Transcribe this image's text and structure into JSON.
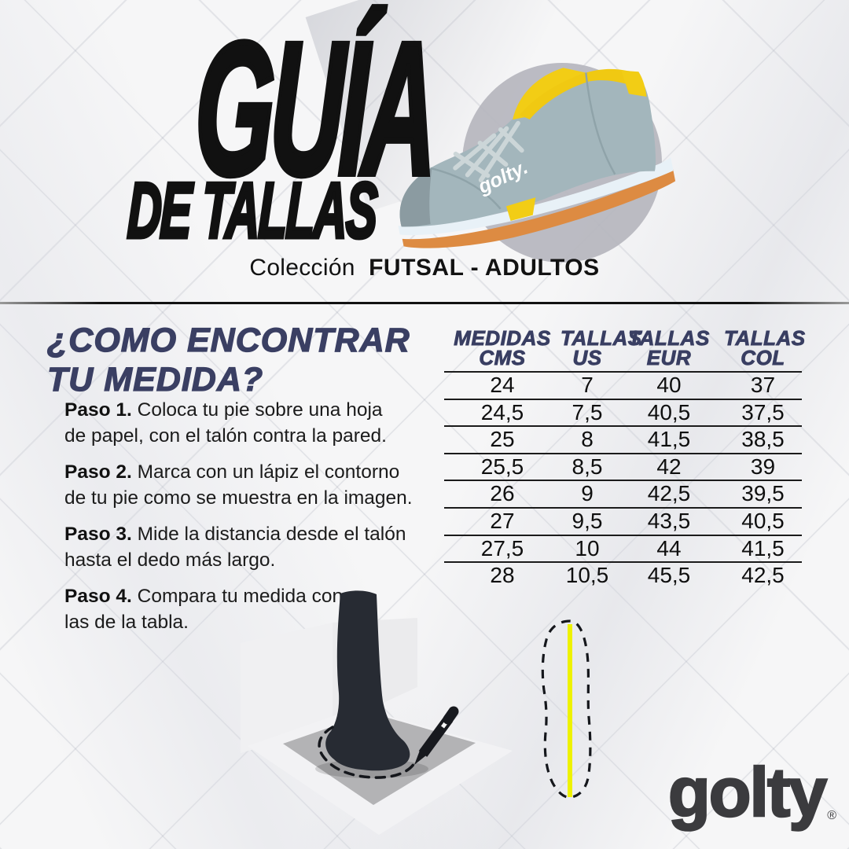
{
  "title": {
    "line1": "GUÍA",
    "line2": "DE TALLAS"
  },
  "subtitle": {
    "prefix": "Colección",
    "collection": "FUTSAL - ADULTOS"
  },
  "howto": {
    "heading_line1": "¿COMO ENCONTRAR",
    "heading_line2": "TU MEDIDA?",
    "steps": [
      {
        "label": "Paso 1.",
        "text": "Coloca tu pie sobre una hoja\nde papel, con el talón contra la pared."
      },
      {
        "label": "Paso 2.",
        "text": "Marca con un lápiz el contorno\nde tu pie como se muestra en la imagen."
      },
      {
        "label": "Paso 3.",
        "text": "Mide la distancia desde el talón\nhasta el dedo más largo."
      },
      {
        "label": "Paso 4.",
        "text": "Compara tu medida con\nlas de la tabla."
      }
    ]
  },
  "size_table": {
    "headers": [
      [
        "MEDIDAS",
        "CMS"
      ],
      [
        "TALLAS",
        "US"
      ],
      [
        "TALLAS",
        "EUR"
      ],
      [
        "TALLAS",
        "COL"
      ]
    ],
    "rows": [
      [
        "24",
        "7",
        "40",
        "37"
      ],
      [
        "24,5",
        "7,5",
        "40,5",
        "37,5"
      ],
      [
        "25",
        "8",
        "41,5",
        "38,5"
      ],
      [
        "25,5",
        "8,5",
        "42",
        "39"
      ],
      [
        "26",
        "9",
        "42,5",
        "39,5"
      ],
      [
        "27",
        "9,5",
        "43,5",
        "40,5"
      ],
      [
        "27,5",
        "10",
        "44",
        "41,5"
      ],
      [
        "28",
        "10,5",
        "45,5",
        "42,5"
      ]
    ]
  },
  "brand": {
    "logo_text": "golty",
    "registered": "®",
    "shoe_label": "golty."
  },
  "illustrations": {
    "shoe": "gray futsal sneaker with yellow tongue and gum sole on gray circle",
    "tracing": "leg silhouette on paper sheet being traced with a pencil",
    "foot_outline": "dashed foot outline with yellow measuring line"
  },
  "colors": {
    "accent_navy": "#3a3f63",
    "text_black": "#111111",
    "table_line": "#1b1b1b",
    "measure_yellow": "#eef200",
    "shoe_gray": "#a3b6bc",
    "shoe_yellow": "#f2cd15",
    "sole_orange": "#dd8b42",
    "logo_gray": "#3b3b3e",
    "leg_dark": "#272b33",
    "backdrop_circle": "#b5b5bc"
  }
}
